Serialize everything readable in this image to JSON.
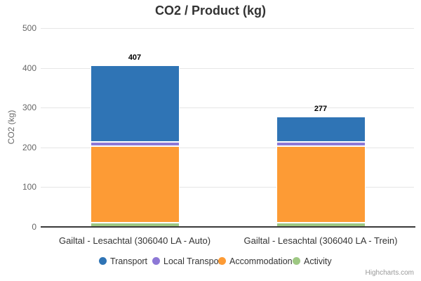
{
  "title": "CO2 / Product (kg)",
  "credits_label": "Highcharts.com",
  "chart_data": {
    "type": "bar",
    "subtype": "stacked-column",
    "title": "CO2 / Product (kg)",
    "xlabel": "",
    "ylabel": "CO2 (kg)",
    "ylim": [
      0,
      500
    ],
    "yticks": [
      0,
      100,
      200,
      300,
      400,
      500
    ],
    "grid": true,
    "legend_position": "bottom",
    "stack_order": "first-series-on-top",
    "categories": [
      "Gailtal - Lesachtal (306040 LA - Auto)",
      "Gailtal - Lesachtal (306040 LA - Trein)"
    ],
    "series": [
      {
        "name": "Transport",
        "color": "#2f74b5",
        "values": [
          194,
          64
        ]
      },
      {
        "name": "Local Transport",
        "color": "#8d78d6",
        "values": [
          10,
          10
        ]
      },
      {
        "name": "Accommodation",
        "color": "#fd9b35",
        "values": [
          192,
          192
        ]
      },
      {
        "name": "Activity",
        "color": "#9ec883",
        "values": [
          11,
          11
        ]
      }
    ],
    "stack_totals": [
      407,
      277
    ]
  },
  "colors": {
    "axis_line": "#3a3a3a",
    "grid_line": "#e6e6e6",
    "tick_label": "#666666",
    "title_text": "#333333",
    "x_label_text": "#333333",
    "credits_text": "#999999"
  }
}
